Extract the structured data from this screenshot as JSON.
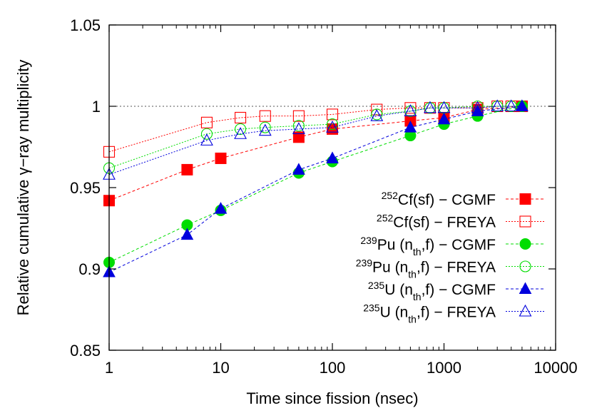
{
  "chart_data": {
    "type": "scatter",
    "title": "",
    "xlabel": "Time since fission (nsec)",
    "ylabel": "Relative cumulative γ−ray multiplicity",
    "x_scale": "log",
    "xlim": [
      1,
      10000
    ],
    "ylim": [
      0.85,
      1.05
    ],
    "x_ticks": [
      1,
      10,
      100,
      1000,
      10000
    ],
    "x_tick_labels": [
      "1",
      "10",
      "100",
      "1000",
      "10000"
    ],
    "y_ticks": [
      0.85,
      0.9,
      0.95,
      1,
      1.05
    ],
    "y_tick_labels": [
      "0.85",
      "0.9",
      "0.95",
      "1",
      "1.05"
    ],
    "reference_line_y": 1,
    "grid": false,
    "legend_position": "right",
    "series": [
      {
        "nucleus": "252",
        "label_main": "Cf(sf) − CGMF",
        "label_sub": "",
        "label_tail": "",
        "color": "#ff0000",
        "marker": "square",
        "filled": true,
        "dash": "4,3",
        "x": [
          1,
          5,
          10,
          50,
          100,
          500,
          1000,
          2000,
          5000
        ],
        "y": [
          0.942,
          0.961,
          0.968,
          0.981,
          0.986,
          0.991,
          0.993,
          0.998,
          1.0
        ]
      },
      {
        "nucleus": "252",
        "label_main": "Cf(sf) − FREYA",
        "label_sub": "",
        "label_tail": "",
        "color": "#ff0000",
        "marker": "square",
        "filled": false,
        "dash": "2,2",
        "x": [
          1,
          7.5,
          15,
          25,
          50,
          100,
          250,
          500,
          750,
          1000,
          2000,
          3000,
          4000,
          5000
        ],
        "y": [
          0.972,
          0.99,
          0.993,
          0.994,
          0.994,
          0.995,
          0.998,
          0.999,
          0.999,
          0.999,
          0.999,
          1.0,
          1.0,
          1.0
        ]
      },
      {
        "nucleus": "239",
        "label_main": "Pu (n",
        "label_sub": "th",
        "label_tail": ",f) − CGMF",
        "color": "#00dd00",
        "marker": "circle",
        "filled": true,
        "dash": "4,3",
        "x": [
          1,
          5,
          10,
          50,
          100,
          500,
          1000,
          2000,
          5000
        ],
        "y": [
          0.904,
          0.927,
          0.936,
          0.959,
          0.966,
          0.982,
          0.989,
          0.994,
          1.0
        ]
      },
      {
        "nucleus": "239",
        "label_main": "Pu (n",
        "label_sub": "th",
        "label_tail": ",f) − FREYA",
        "color": "#00dd00",
        "marker": "circle",
        "filled": false,
        "dash": "2,2",
        "x": [
          1,
          7.5,
          15,
          25,
          50,
          100,
          250,
          500,
          750,
          1000,
          2000,
          3000,
          4000,
          5000
        ],
        "y": [
          0.962,
          0.983,
          0.986,
          0.987,
          0.988,
          0.989,
          0.995,
          0.997,
          0.999,
          0.999,
          1.0,
          1.0,
          1.0,
          1.0
        ]
      },
      {
        "nucleus": "235",
        "label_main": "U (n",
        "label_sub": "th",
        "label_tail": ",f) − CGMF",
        "color": "#0000dd",
        "marker": "triangle",
        "filled": true,
        "dash": "4,3",
        "x": [
          1,
          5,
          10,
          50,
          100,
          500,
          1000,
          2000,
          5000
        ],
        "y": [
          0.898,
          0.921,
          0.937,
          0.961,
          0.968,
          0.987,
          0.992,
          0.997,
          1.0
        ]
      },
      {
        "nucleus": "235",
        "label_main": "U (n",
        "label_sub": "th",
        "label_tail": ",f) − FREYA",
        "color": "#0000dd",
        "marker": "triangle",
        "filled": false,
        "dash": "2,2",
        "x": [
          1,
          7.5,
          15,
          25,
          50,
          100,
          250,
          500,
          750,
          1000,
          2000,
          3000,
          4000,
          5000
        ],
        "y": [
          0.958,
          0.979,
          0.983,
          0.985,
          0.986,
          0.987,
          0.994,
          0.997,
          0.999,
          0.999,
          0.999,
          1.0,
          1.0,
          1.0
        ]
      }
    ]
  }
}
